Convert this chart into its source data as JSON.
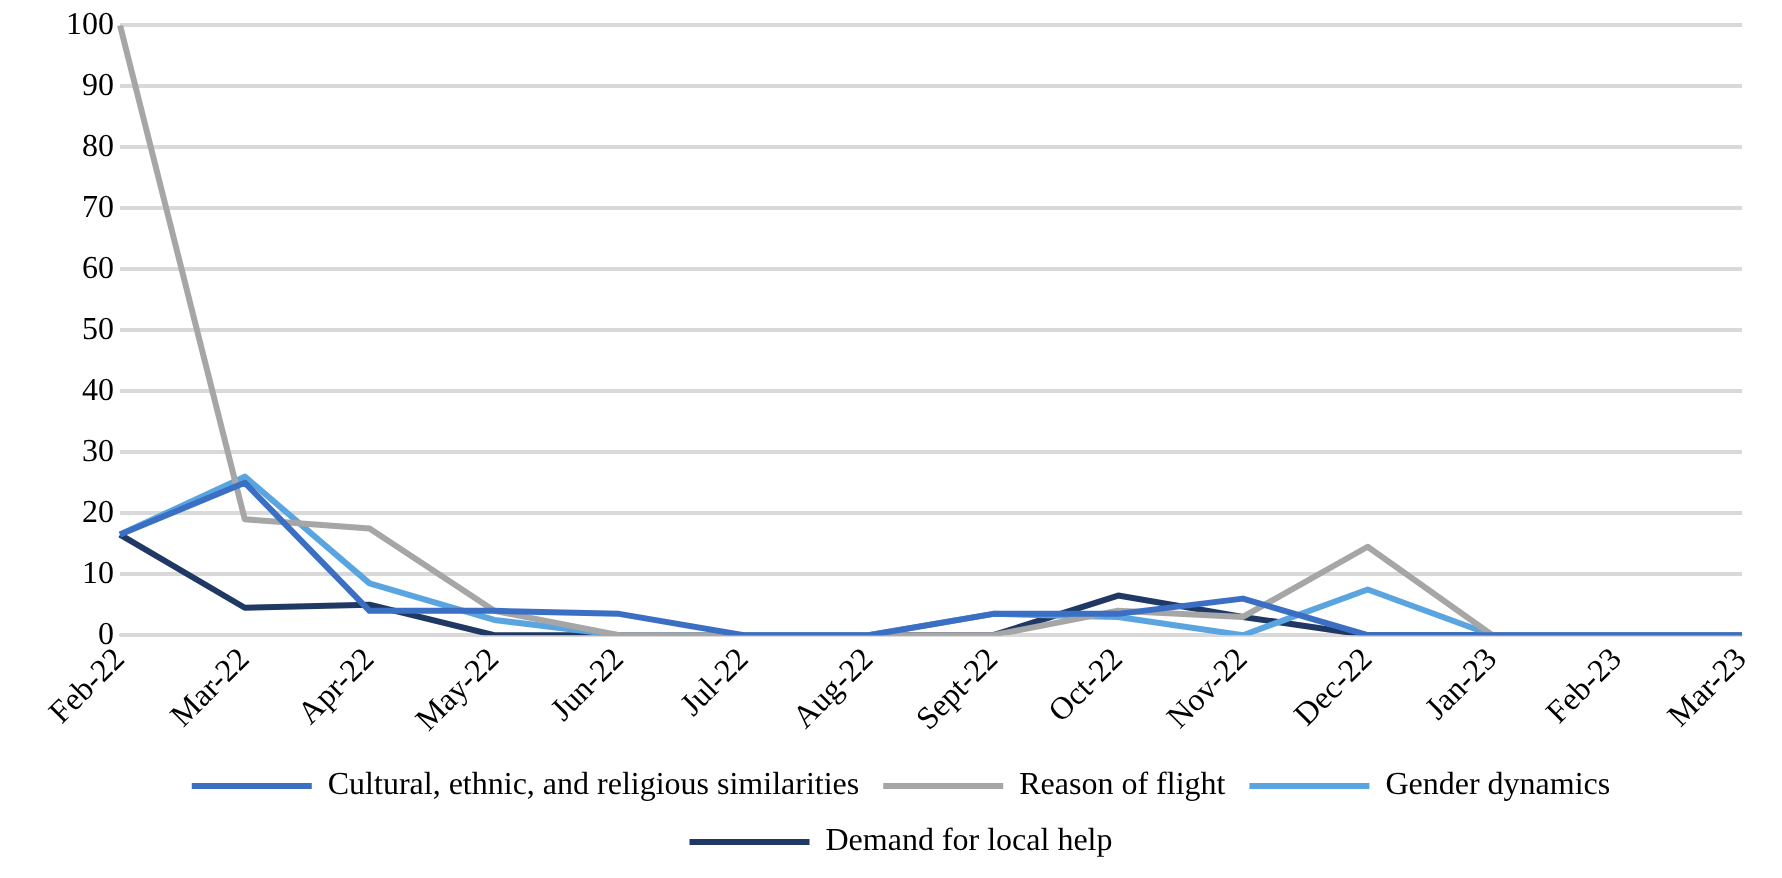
{
  "chart_data": {
    "type": "line",
    "categories": [
      "Feb-22",
      "Mar-22",
      "Apr-22",
      "May-22",
      "Jun-22",
      "Jul-22",
      "Aug-22",
      "Sept-22",
      "Oct-22",
      "Nov-22",
      "Dec-22",
      "Jan-23",
      "Feb-23",
      "Mar-23"
    ],
    "series": [
      {
        "name": "Cultural, ethnic, and religious similarities",
        "color": "#3a6fc4",
        "values": [
          16.5,
          25,
          4,
          4,
          3.5,
          0,
          0,
          3.5,
          3.5,
          6,
          0,
          0,
          0,
          0
        ]
      },
      {
        "name": "Reason of flight",
        "color": "#a6a6a6",
        "values": [
          100,
          19,
          17.5,
          4,
          0,
          0,
          0,
          0,
          4,
          3,
          14.5,
          0,
          0,
          0
        ]
      },
      {
        "name": "Gender dynamics",
        "color": "#5aa5e0",
        "values": [
          16.5,
          26,
          8.5,
          2.5,
          0,
          0,
          0,
          3.5,
          3,
          0,
          7.5,
          0,
          0,
          0
        ]
      },
      {
        "name": "Demand for local help",
        "color": "#1f3864",
        "values": [
          16.5,
          4.5,
          5,
          0,
          0,
          0,
          0,
          0,
          6.5,
          3,
          0,
          0,
          0,
          0
        ]
      }
    ],
    "ylim": [
      0,
      100
    ],
    "yticks": [
      0,
      10,
      20,
      30,
      40,
      50,
      60,
      70,
      80,
      90,
      100
    ],
    "grid": "y",
    "legend": "bottom",
    "marker": "none",
    "line_style": "solid"
  }
}
